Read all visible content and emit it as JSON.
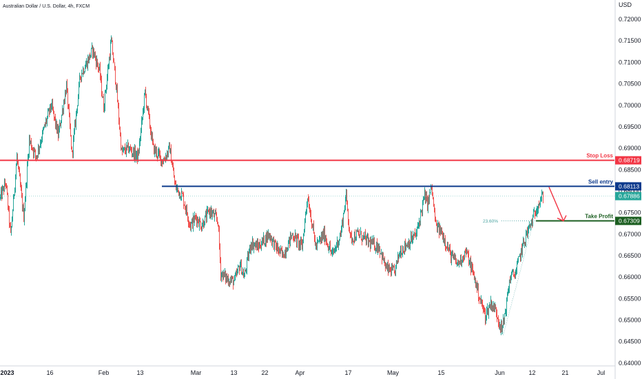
{
  "chart_data": {
    "type": "candlestick",
    "title": "Australian Dollar / U.S. Dollar, 4h, FXCM",
    "currency": "USD",
    "ylim": [
      0.6395,
      0.7245
    ],
    "yticks": [
      "0.72000",
      "0.71500",
      "0.71000",
      "0.70500",
      "0.70000",
      "0.69500",
      "0.69000",
      "0.68500",
      "0.68000",
      "0.67500",
      "0.67000",
      "0.66500",
      "0.66000",
      "0.65500",
      "0.65000",
      "0.64500",
      "0.64000"
    ],
    "xticks": [
      "2023",
      "16",
      "Feb",
      "13",
      "Mar",
      "13",
      "22",
      "Apr",
      "17",
      "May",
      "15",
      "Jun",
      "12",
      "21",
      "Jul"
    ],
    "xtick_bold": [
      true,
      false,
      false,
      false,
      false,
      false,
      false,
      false,
      false,
      false,
      false,
      false,
      false,
      false,
      false
    ],
    "xtick_index": [
      0,
      72,
      150,
      203,
      284,
      339,
      384,
      435,
      505,
      570,
      640,
      725,
      772,
      820,
      872
    ],
    "bars": 795,
    "anchors": [
      [
        0,
        0.6785
      ],
      [
        8,
        0.682
      ],
      [
        15,
        0.6695
      ],
      [
        24,
        0.688
      ],
      [
        34,
        0.674
      ],
      [
        42,
        0.692
      ],
      [
        52,
        0.688
      ],
      [
        66,
        0.696
      ],
      [
        74,
        0.7
      ],
      [
        84,
        0.693
      ],
      [
        96,
        0.7045
      ],
      [
        104,
        0.6885
      ],
      [
        116,
        0.707
      ],
      [
        126,
        0.71
      ],
      [
        134,
        0.713
      ],
      [
        144,
        0.708
      ],
      [
        150,
        0.6995
      ],
      [
        161,
        0.715
      ],
      [
        168,
        0.705
      ],
      [
        176,
        0.689
      ],
      [
        186,
        0.69
      ],
      [
        200,
        0.688
      ],
      [
        210,
        0.703
      ],
      [
        222,
        0.69
      ],
      [
        236,
        0.687
      ],
      [
        246,
        0.69
      ],
      [
        254,
        0.681
      ],
      [
        264,
        0.679
      ],
      [
        276,
        0.672
      ],
      [
        284,
        0.674
      ],
      [
        292,
        0.672
      ],
      [
        304,
        0.6755
      ],
      [
        316,
        0.673
      ],
      [
        320,
        0.661
      ],
      [
        330,
        0.6595
      ],
      [
        340,
        0.659
      ],
      [
        348,
        0.663
      ],
      [
        354,
        0.66
      ],
      [
        364,
        0.668
      ],
      [
        374,
        0.667
      ],
      [
        390,
        0.67
      ],
      [
        400,
        0.667
      ],
      [
        410,
        0.665
      ],
      [
        424,
        0.67
      ],
      [
        438,
        0.667
      ],
      [
        446,
        0.679
      ],
      [
        458,
        0.667
      ],
      [
        470,
        0.67
      ],
      [
        482,
        0.665
      ],
      [
        494,
        0.67
      ],
      [
        502,
        0.679
      ],
      [
        508,
        0.669
      ],
      [
        520,
        0.67
      ],
      [
        536,
        0.668
      ],
      [
        550,
        0.667
      ],
      [
        560,
        0.662
      ],
      [
        572,
        0.661
      ],
      [
        580,
        0.666
      ],
      [
        592,
        0.668
      ],
      [
        604,
        0.67
      ],
      [
        616,
        0.679
      ],
      [
        620,
        0.677
      ],
      [
        626,
        0.681
      ],
      [
        632,
        0.672
      ],
      [
        642,
        0.67
      ],
      [
        654,
        0.665
      ],
      [
        664,
        0.663
      ],
      [
        676,
        0.666
      ],
      [
        688,
        0.66
      ],
      [
        696,
        0.655
      ],
      [
        704,
        0.651
      ],
      [
        712,
        0.654
      ],
      [
        720,
        0.652
      ],
      [
        728,
        0.6475
      ],
      [
        734,
        0.653
      ],
      [
        740,
        0.66
      ],
      [
        748,
        0.661
      ],
      [
        756,
        0.666
      ],
      [
        764,
        0.67
      ],
      [
        772,
        0.673
      ],
      [
        780,
        0.677
      ],
      [
        788,
        0.6788
      ]
    ],
    "up_color": "#26a69a",
    "down_color": "#ef5350",
    "levels": {
      "stop_loss": {
        "label": "Stop Loss",
        "value": 0.68719,
        "tag": "0.68719",
        "color": "#f23645"
      },
      "sell_entry": {
        "label": "Sell entry",
        "value": 0.68113,
        "tag": "0.68113",
        "color": "#0d3a8c"
      },
      "take_profit": {
        "label": "Take Profit",
        "value": 0.67309,
        "tag": "0.67309",
        "color": "#1b5e20"
      },
      "last_price": {
        "value": 0.67886,
        "tag": "0.67886",
        "color": "#26a69a"
      },
      "fib": {
        "label": "23.60%",
        "value": 0.67309,
        "color": "#4aa3a0"
      }
    }
  }
}
